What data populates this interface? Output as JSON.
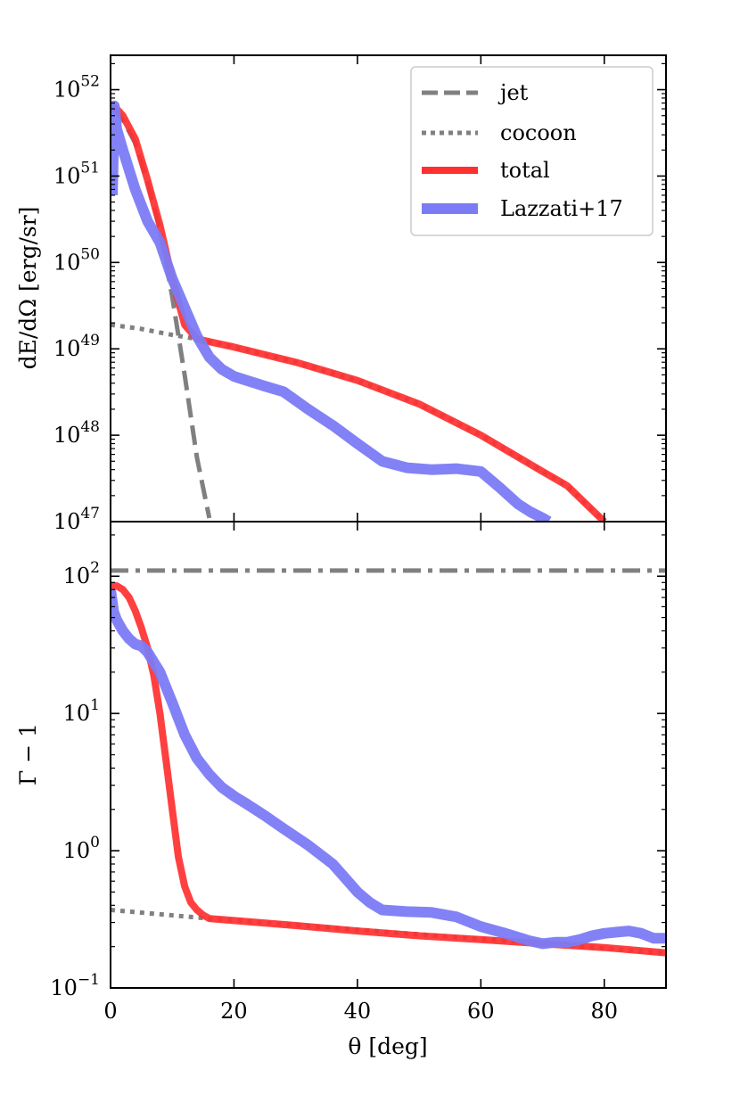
{
  "chart_data": [
    {
      "type": "line",
      "panel": "top",
      "ylabel": "dE/dΩ [erg/sr]",
      "yscale": "log",
      "ylim": [
        1e+47,
        2.5e+52
      ],
      "xlim": [
        0,
        90
      ],
      "yticks": [
        {
          "value": 1e+47,
          "base": "10",
          "exp": "47"
        },
        {
          "value": 1e+48,
          "base": "10",
          "exp": "48"
        },
        {
          "value": 1e+49,
          "base": "10",
          "exp": "49"
        },
        {
          "value": 1e+50,
          "base": "10",
          "exp": "50"
        },
        {
          "value": 1e+51,
          "base": "10",
          "exp": "51"
        },
        {
          "value": 1e+52,
          "base": "10",
          "exp": "52"
        }
      ],
      "legend": {
        "position": "top-right",
        "entries": [
          "jet",
          "cocoon",
          "total",
          "Lazzati+17"
        ]
      },
      "series": [
        {
          "name": "jet",
          "style": "dashed",
          "color": "#808080",
          "x": [
            0,
            1,
            2,
            4,
            6,
            8,
            10,
            12,
            14,
            16
          ],
          "y": [
            6e+51,
            5.5e+51,
            4.5e+51,
            2.4e+51,
            8.5e+50,
            2.4e+50,
            4e+49,
            5e+48,
            5.5e+47,
            1.1e+47
          ]
        },
        {
          "name": "cocoon",
          "style": "dotted",
          "color": "#808080",
          "x": [
            0,
            5,
            10,
            14,
            20,
            30,
            40,
            50,
            60,
            70,
            74,
            80
          ],
          "y": [
            1.9e+49,
            1.7e+49,
            1.45e+49,
            1.3e+49,
            1.05e+49,
            7e+48,
            4.3e+48,
            2.3e+48,
            1e+48,
            3.8e+47,
            2.6e+47,
            1e+47
          ]
        },
        {
          "name": "total",
          "style": "solid",
          "color": "#ff3030",
          "x": [
            0,
            1,
            2,
            4,
            6,
            8,
            10,
            12,
            14,
            20,
            30,
            40,
            50,
            60,
            70,
            74,
            80
          ],
          "y": [
            6.2e+51,
            6e+51,
            5e+51,
            2.7e+51,
            9e+50,
            2.7e+50,
            6.5e+49,
            1.9e+49,
            1.3e+49,
            1.05e+49,
            7e+48,
            4.3e+48,
            2.3e+48,
            1e+48,
            3.8e+47,
            2.6e+47,
            1e+47
          ]
        },
        {
          "name": "Lazzati+17",
          "style": "solid",
          "color": "#7b7bf5",
          "x": [
            0.3,
            0.6,
            1,
            2,
            4,
            6,
            8,
            10,
            12,
            14,
            16,
            18,
            20,
            25,
            28,
            32,
            36,
            40,
            44,
            48,
            52,
            56,
            60,
            63,
            66,
            68,
            70,
            71
          ],
          "y": [
            6e+50,
            6.5e+51,
            3.5e+51,
            2e+51,
            7e+50,
            3e+50,
            1.7e+50,
            6.5e+49,
            3e+49,
            1.4e+49,
            8e+48,
            5.8e+48,
            4.8e+48,
            3.7e+48,
            3.2e+48,
            2e+48,
            1.3e+48,
            8e+47,
            5e+47,
            4.2e+47,
            4e+47,
            4.1e+47,
            3.8e+47,
            2.5e+47,
            1.6e+47,
            1.3e+47,
            1.1e+47,
            1e+47
          ]
        }
      ]
    },
    {
      "type": "line",
      "panel": "bottom",
      "xlabel": "θ [deg]",
      "ylabel": "Γ − 1",
      "yscale": "log",
      "ylim": [
        0.1,
        250
      ],
      "xlim": [
        0,
        90
      ],
      "xticks": [
        0,
        20,
        40,
        60,
        80
      ],
      "yticks": [
        {
          "value": 0.1,
          "base": "10",
          "exp": "−1"
        },
        {
          "value": 1,
          "base": "10",
          "exp": "0"
        },
        {
          "value": 10,
          "base": "10",
          "exp": "1"
        },
        {
          "value": 100,
          "base": "10",
          "exp": "2"
        }
      ],
      "series": [
        {
          "name": "",
          "style": "dashdot",
          "color": "#808080",
          "x": [
            0,
            90
          ],
          "y": [
            110,
            110
          ]
        },
        {
          "name": "",
          "style": "dotted",
          "color": "#808080",
          "x": [
            0,
            16,
            90
          ],
          "y": [
            0.37,
            0.32,
            0.18
          ]
        },
        {
          "name": "total",
          "style": "solid",
          "color": "#ff3030",
          "x": [
            0,
            1,
            2,
            3,
            4,
            5,
            6,
            7,
            8,
            9,
            10,
            11,
            12,
            13,
            14,
            15,
            16,
            20,
            30,
            40,
            50,
            60,
            70,
            80,
            90
          ],
          "y": [
            86,
            85,
            80,
            70,
            56,
            42,
            30,
            19,
            10,
            4.5,
            2,
            0.9,
            0.55,
            0.42,
            0.37,
            0.34,
            0.32,
            0.31,
            0.285,
            0.26,
            0.24,
            0.225,
            0.21,
            0.197,
            0.18
          ]
        },
        {
          "name": "Lazzati+17",
          "style": "solid",
          "color": "#7b7bf5",
          "x": [
            0,
            0.5,
            1,
            2,
            3,
            4,
            5,
            6,
            8,
            10,
            12,
            14,
            16,
            18,
            20,
            22,
            25,
            28,
            32,
            36,
            40,
            42,
            44,
            48,
            52,
            56,
            60,
            64,
            68,
            70,
            72,
            74,
            76,
            78,
            80,
            82,
            84,
            86,
            88,
            90
          ],
          "y": [
            80,
            55,
            48,
            40,
            35,
            32,
            31,
            28,
            20,
            12,
            7,
            4.7,
            3.6,
            2.9,
            2.5,
            2.2,
            1.8,
            1.45,
            1.1,
            0.8,
            0.5,
            0.42,
            0.37,
            0.36,
            0.355,
            0.33,
            0.28,
            0.25,
            0.22,
            0.21,
            0.215,
            0.215,
            0.225,
            0.24,
            0.25,
            0.255,
            0.26,
            0.25,
            0.23,
            0.23
          ]
        }
      ]
    }
  ]
}
